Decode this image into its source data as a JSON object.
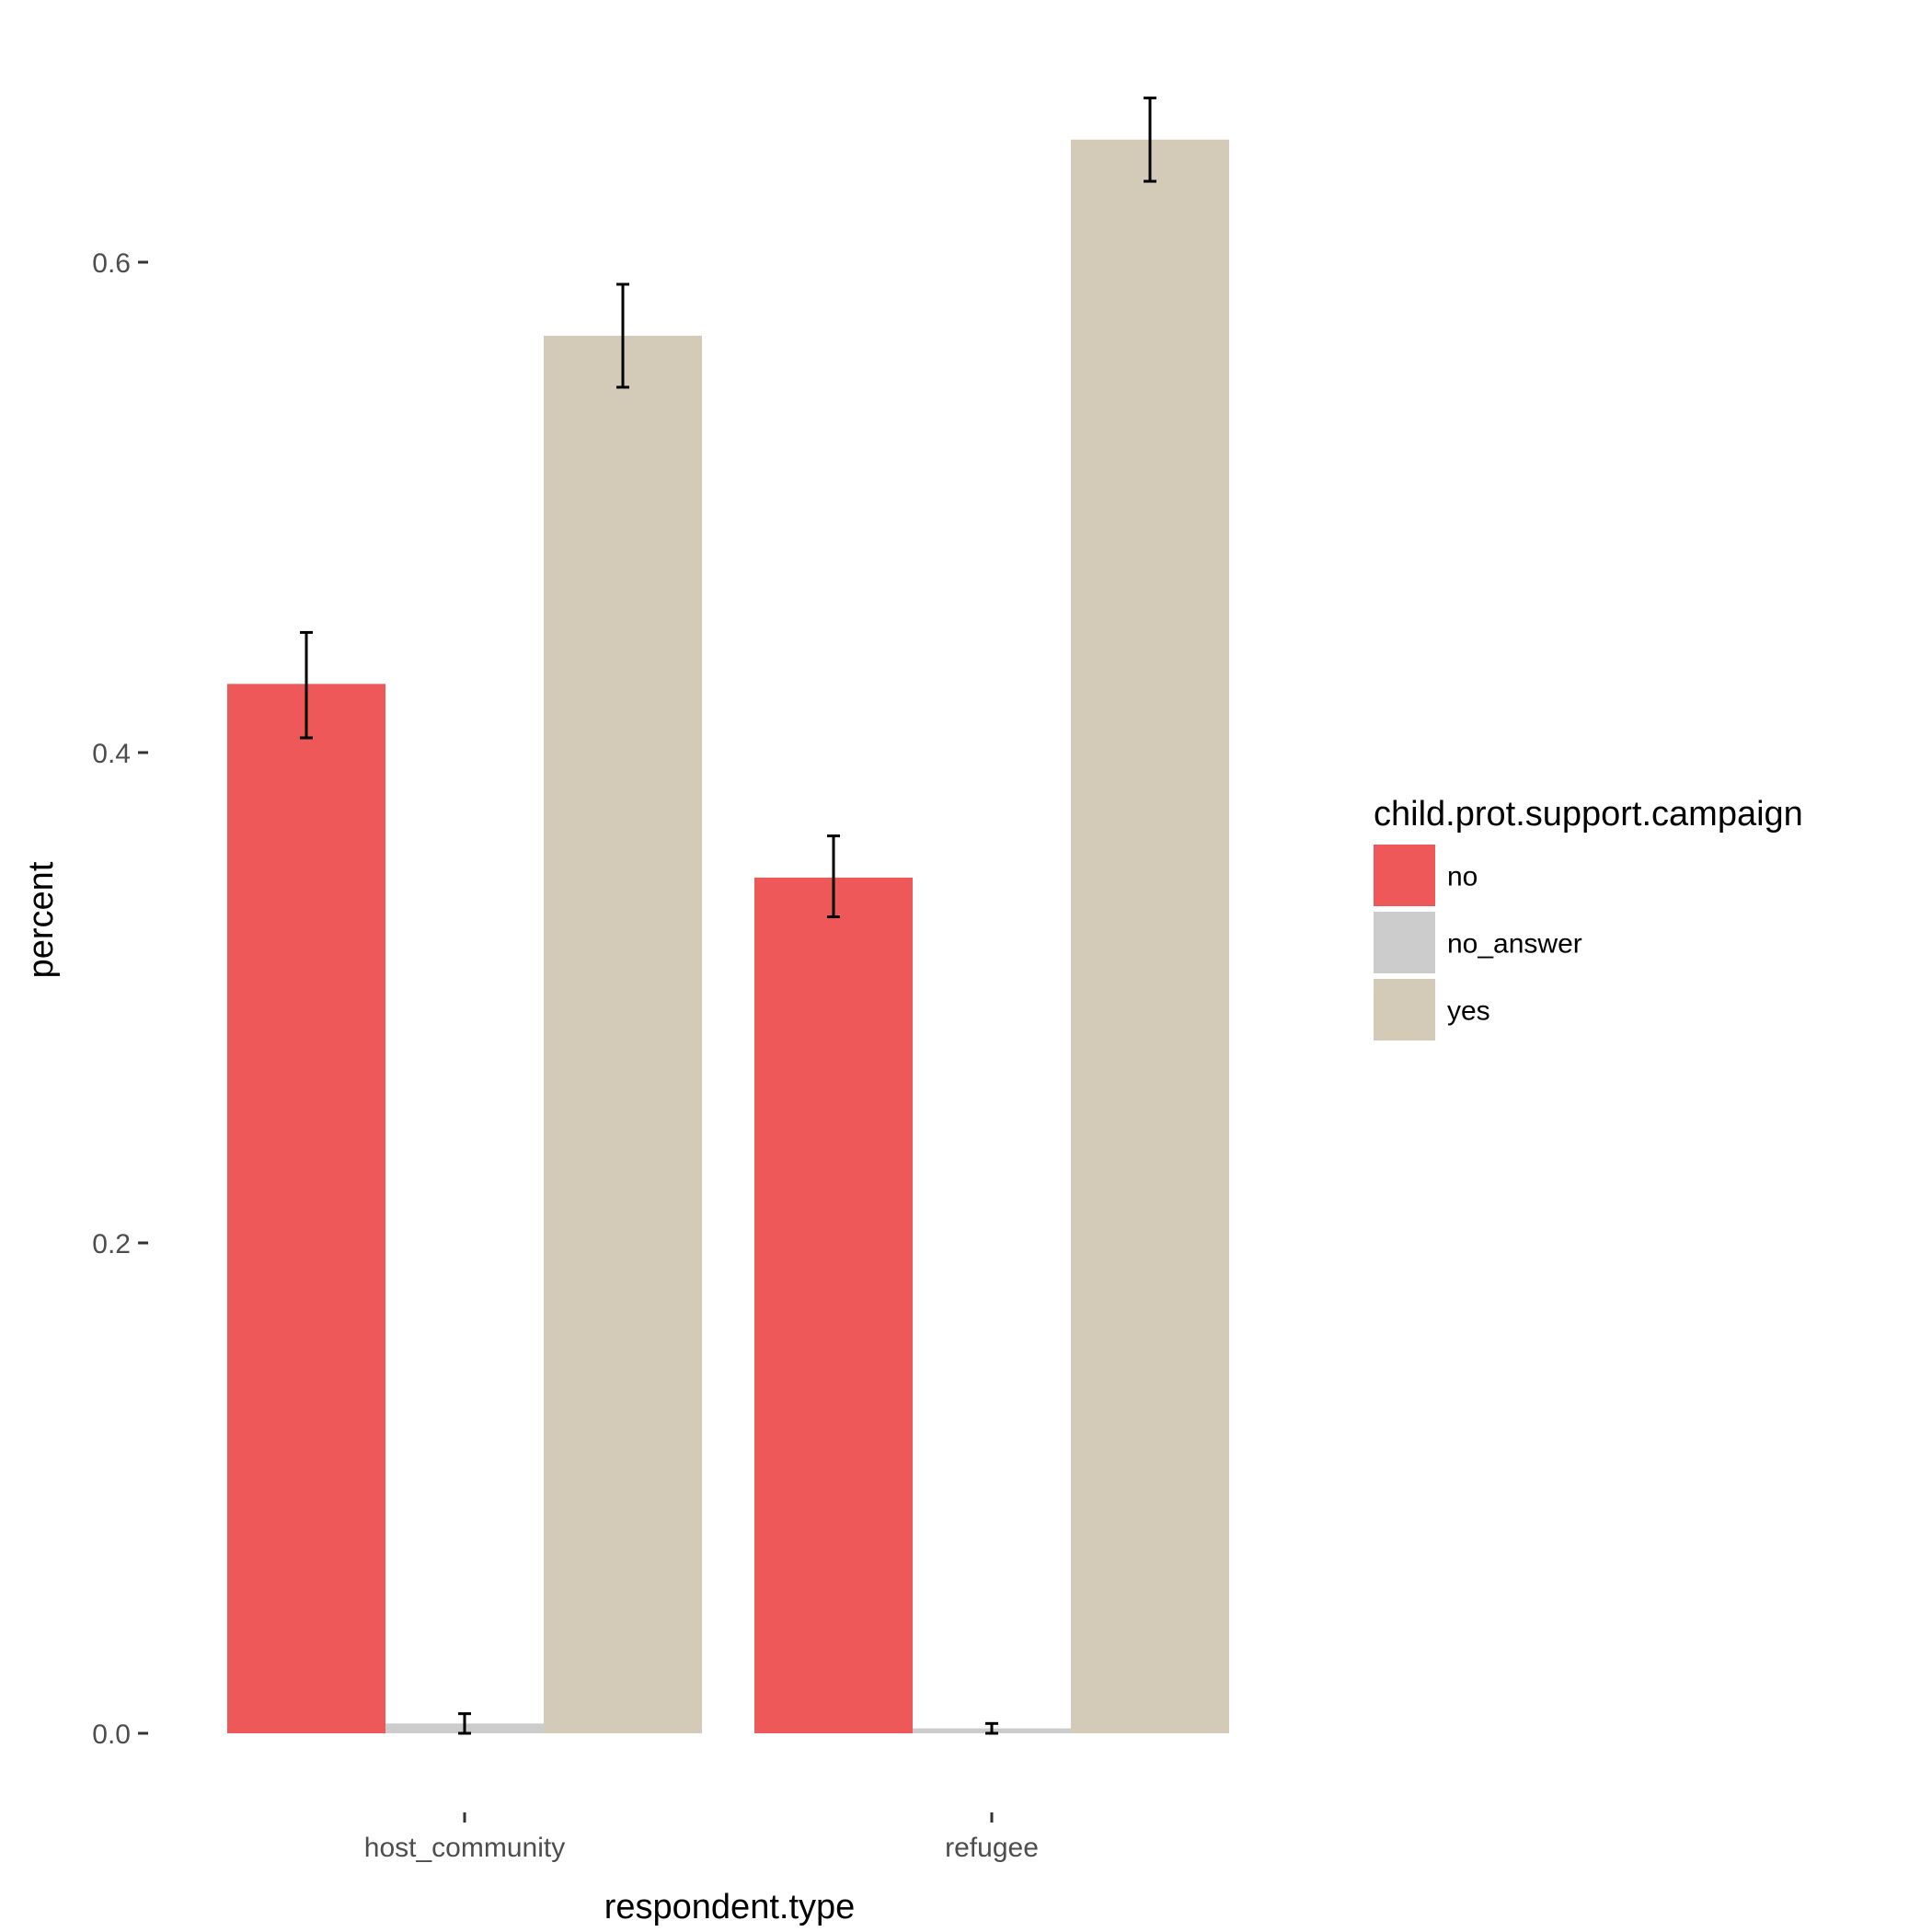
{
  "chart_data": {
    "type": "bar",
    "title": "",
    "xlabel": "respondent.type",
    "ylabel": "percent",
    "categories": [
      "host_community",
      "refugee"
    ],
    "series": [
      {
        "name": "no",
        "color": "#ee5859",
        "values": [
          0.428,
          0.349
        ],
        "error_low": [
          0.406,
          0.333
        ],
        "error_high": [
          0.449,
          0.366
        ]
      },
      {
        "name": "no_answer",
        "color": "#cccccc",
        "values": [
          0.004,
          0.002
        ],
        "error_low": [
          0.0,
          0.0
        ],
        "error_high": [
          0.008,
          0.004
        ]
      },
      {
        "name": "yes",
        "color": "#d3cbb8",
        "values": [
          0.57,
          0.65
        ],
        "error_low": [
          0.549,
          0.633
        ],
        "error_high": [
          0.591,
          0.667
        ]
      }
    ],
    "ylim": [
      -0.02,
      0.67
    ],
    "yticks": [
      0.0,
      0.2,
      0.4,
      0.6
    ],
    "ytick_labels": [
      "0.0",
      "0.2",
      "0.4",
      "0.6"
    ],
    "grid": false,
    "legend": {
      "title": "child.prot.support.campaign",
      "position": "right"
    }
  }
}
